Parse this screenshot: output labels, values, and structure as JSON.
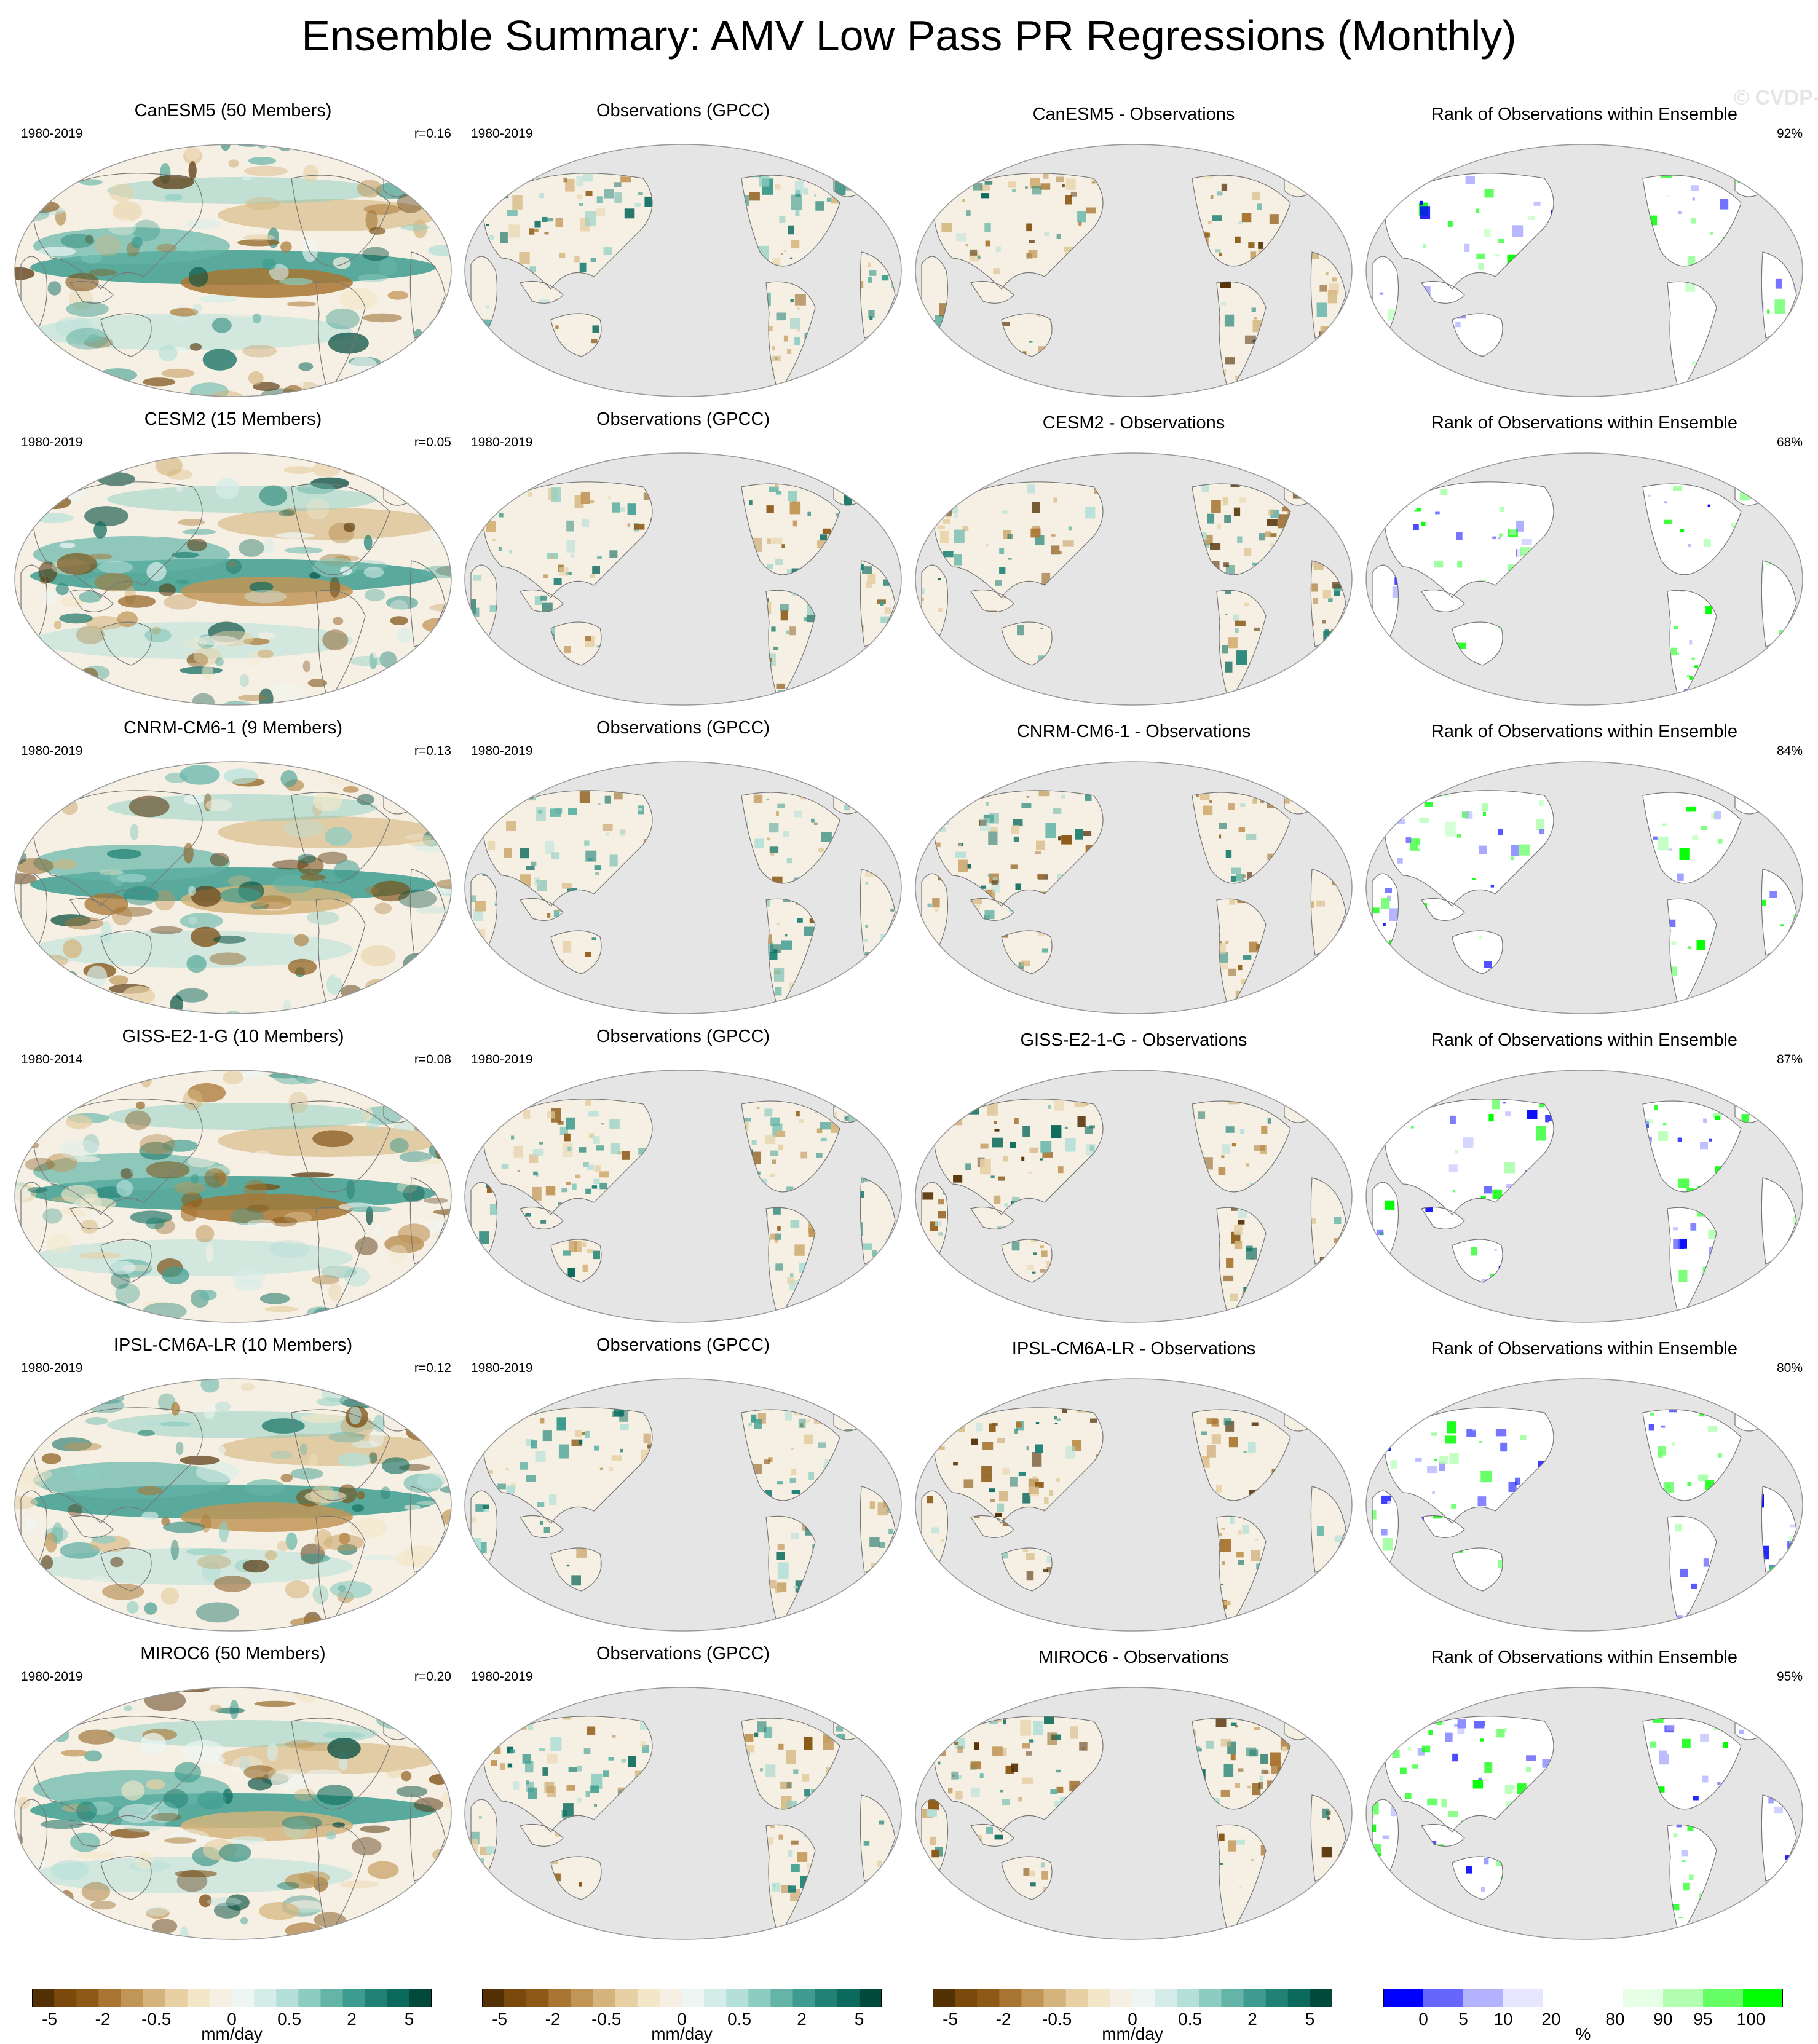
{
  "title": "Ensemble Summary: AMV Low Pass PR Regressions (Monthly)",
  "watermark": "© CVDP-LE",
  "rows": [
    {
      "model_title": "CanESM5 (50 Members)",
      "model_period": "1980-2019",
      "r": "r=0.16",
      "obs_title": "Observations (GPCC)",
      "obs_period": "1980-2019",
      "diff_title": "CanESM5 - Observations",
      "rank_title": "Rank of Observations within Ensemble",
      "rank_pct": "92%"
    },
    {
      "model_title": "CESM2 (15 Members)",
      "model_period": "1980-2019",
      "r": "r=0.05",
      "obs_title": "Observations (GPCC)",
      "obs_period": "1980-2019",
      "diff_title": "CESM2 - Observations",
      "rank_title": "Rank of Observations within Ensemble",
      "rank_pct": "68%"
    },
    {
      "model_title": "CNRM-CM6-1 (9 Members)",
      "model_period": "1980-2019",
      "r": "r=0.13",
      "obs_title": "Observations (GPCC)",
      "obs_period": "1980-2019",
      "diff_title": "CNRM-CM6-1 - Observations",
      "rank_title": "Rank of Observations within Ensemble",
      "rank_pct": "84%"
    },
    {
      "model_title": "GISS-E2-1-G (10 Members)",
      "model_period": "1980-2014",
      "r": "r=0.08",
      "obs_title": "Observations (GPCC)",
      "obs_period": "1980-2019",
      "diff_title": "GISS-E2-1-G - Observations",
      "rank_title": "Rank of Observations within Ensemble",
      "rank_pct": "87%"
    },
    {
      "model_title": "IPSL-CM6A-LR (10 Members)",
      "model_period": "1980-2019",
      "r": "r=0.12",
      "obs_title": "Observations (GPCC)",
      "obs_period": "1980-2019",
      "diff_title": "IPSL-CM6A-LR - Observations",
      "rank_title": "Rank of Observations within Ensemble",
      "rank_pct": "80%"
    },
    {
      "model_title": "MIROC6 (50 Members)",
      "model_period": "1980-2019",
      "r": "r=0.20",
      "obs_title": "Observations (GPCC)",
      "obs_period": "1980-2019",
      "diff_title": "MIROC6 - Observations",
      "rank_title": "Rank of Observations within Ensemble",
      "rank_pct": "95%"
    }
  ],
  "colorbars": {
    "pr": {
      "units": "mm/day",
      "tick_labels": [
        "-5",
        "-2",
        "-0.5",
        "0",
        "0.5",
        "2",
        "5"
      ],
      "colors": [
        "#543005",
        "#7a4a0d",
        "#8c5a16",
        "#a87632",
        "#c19556",
        "#d4b47c",
        "#e6d0a4",
        "#f3e7c9",
        "#f6f0e4",
        "#eef6f4",
        "#d5ede9",
        "#b4e0d9",
        "#8dcdc1",
        "#64b5a8",
        "#3d9c8f",
        "#1f8275",
        "#0b6a5c",
        "#00493b"
      ]
    },
    "rank": {
      "units": "%",
      "tick_labels": [
        "0",
        "5",
        "10",
        "20",
        "80",
        "90",
        "95",
        "100"
      ],
      "colors": [
        "#0000ff",
        "#6666ff",
        "#b2b2ff",
        "#e6e6ff",
        "#ffffff",
        "#ffffff",
        "#e6ffe6",
        "#b2ffb2",
        "#66ff66",
        "#00ff00"
      ]
    }
  },
  "palette": {
    "land_gray": "#e5e5e5",
    "coast": "#777777",
    "ocean_frame": "#999999"
  }
}
